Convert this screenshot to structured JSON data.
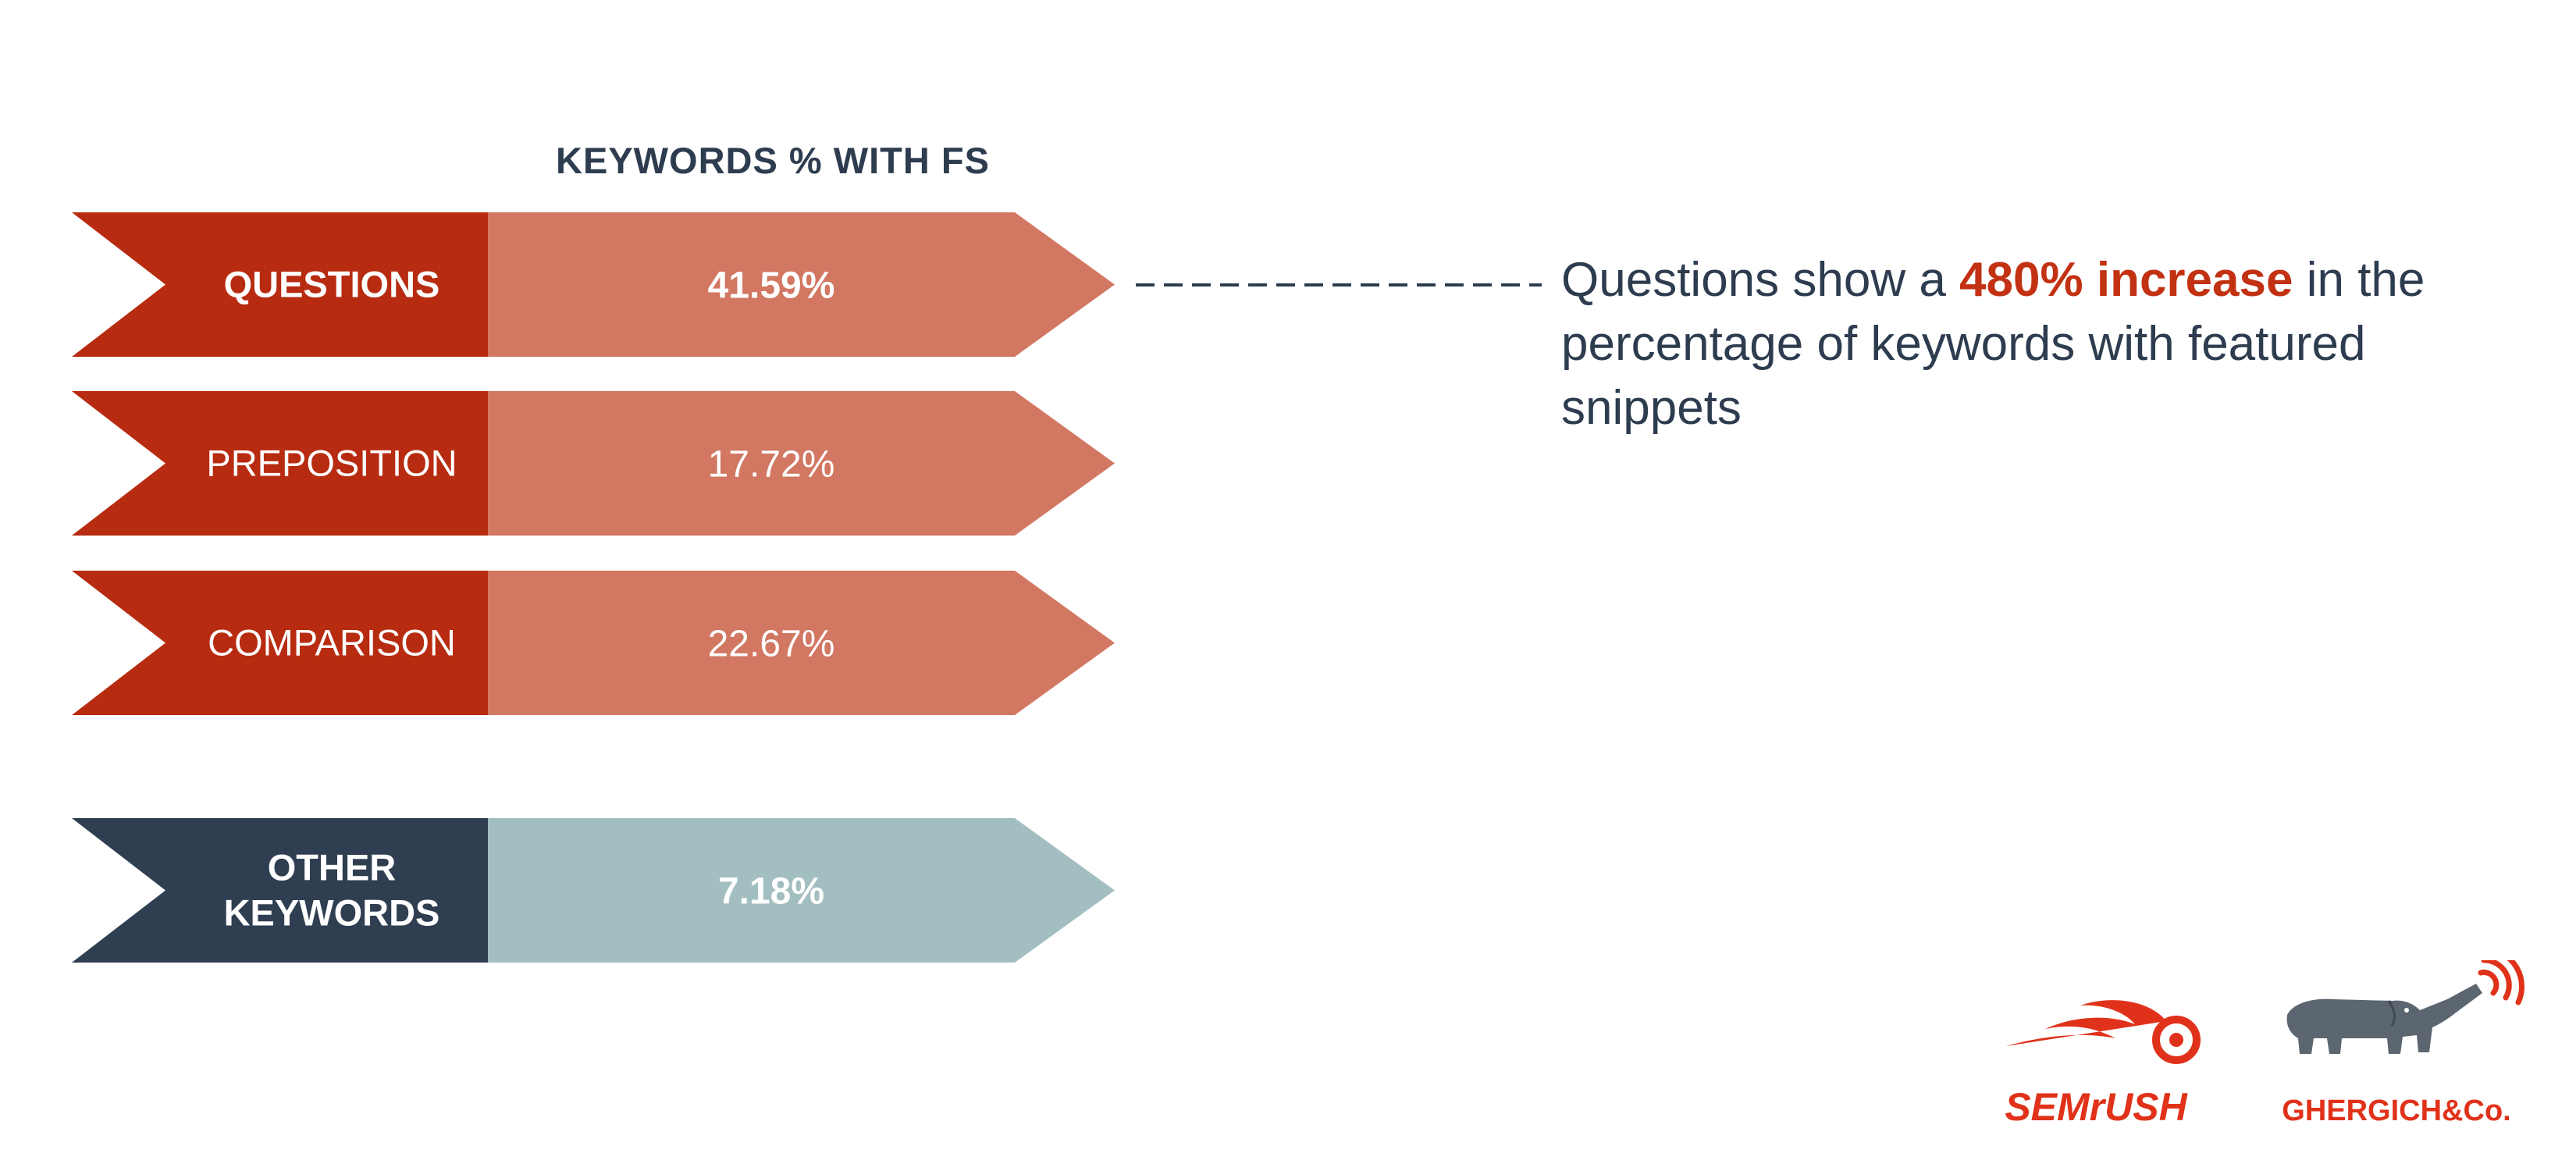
{
  "chart_data": {
    "type": "bar",
    "title": "KEYWORDS % WITH FS",
    "categories": [
      "QUESTIONS",
      "PREPOSITION",
      "COMPARISON",
      "OTHER KEYWORDS"
    ],
    "label_lines": [
      [
        "QUESTIONS"
      ],
      [
        "PREPOSITION"
      ],
      [
        "COMPARISON"
      ],
      [
        "OTHER",
        "KEYWORDS"
      ]
    ],
    "values": [
      41.59,
      17.72,
      22.67,
      7.18
    ],
    "value_labels": [
      "41.59%",
      "17.72%",
      "22.67%",
      "7.18%"
    ],
    "bold_labels": [
      true,
      false,
      false,
      true
    ],
    "groups": [
      "modifier",
      "modifier",
      "modifier",
      "other"
    ],
    "colors": {
      "modifier_dark": "#b72b10",
      "modifier_light": "#d27762",
      "other_dark": "#2f3e51",
      "other_light": "#a2bec1"
    }
  },
  "annotation": {
    "prefix": "Questions show a ",
    "highlight": "480% increase",
    "suffix": " in the percentage of keywords with featured snippets",
    "highlight_color": "#c23112"
  },
  "logos": {
    "semrush": "SEMrUSH",
    "ghergich": "GHERGICH&Co.",
    "brand_color": "#e0321a",
    "elephant_color": "#5b6670"
  }
}
